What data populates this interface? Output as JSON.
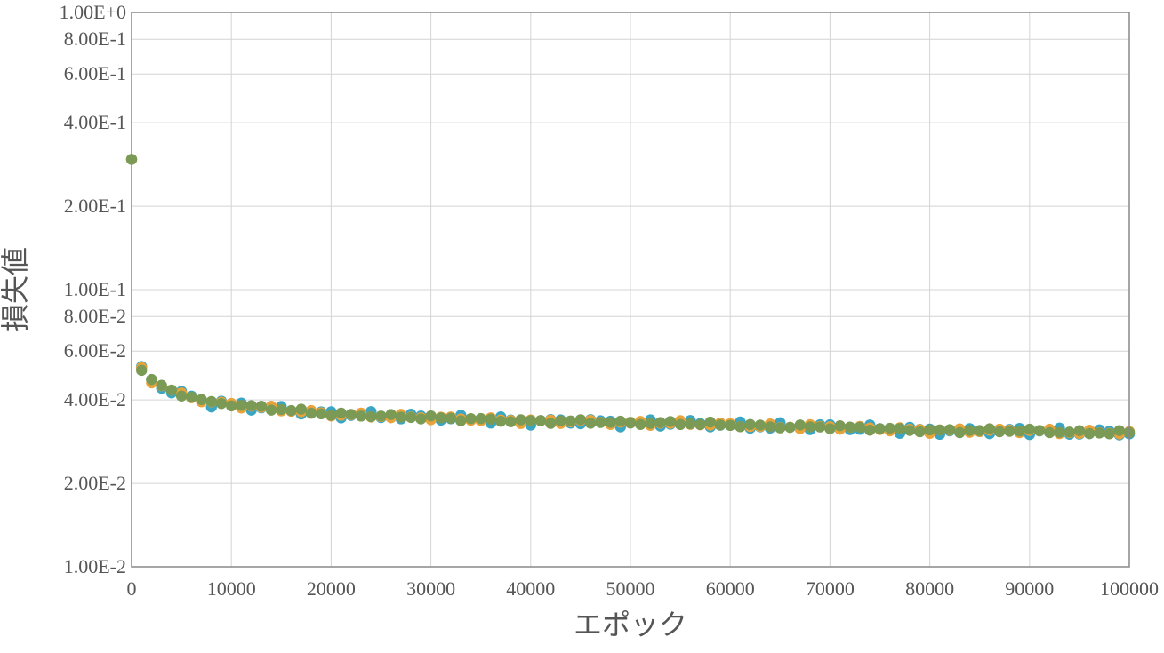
{
  "chart_data": {
    "type": "scatter",
    "title": "",
    "xlabel": "エポック",
    "ylabel": "損失値",
    "xlim": [
      0,
      100000
    ],
    "ylim": [
      0.01,
      1.0
    ],
    "yscale": "log",
    "grid": true,
    "x_ticks": [
      {
        "value": 0,
        "label": "0"
      },
      {
        "value": 10000,
        "label": "10000"
      },
      {
        "value": 20000,
        "label": "20000"
      },
      {
        "value": 30000,
        "label": "30000"
      },
      {
        "value": 40000,
        "label": "40000"
      },
      {
        "value": 50000,
        "label": "50000"
      },
      {
        "value": 60000,
        "label": "60000"
      },
      {
        "value": 70000,
        "label": "70000"
      },
      {
        "value": 80000,
        "label": "80000"
      },
      {
        "value": 90000,
        "label": "90000"
      },
      {
        "value": 100000,
        "label": "100000"
      }
    ],
    "y_ticks": [
      {
        "value": 1.0,
        "label": "1.00E+0"
      },
      {
        "value": 0.8,
        "label": "8.00E-1"
      },
      {
        "value": 0.6,
        "label": "6.00E-1"
      },
      {
        "value": 0.4,
        "label": "4.00E-1"
      },
      {
        "value": 0.2,
        "label": "2.00E-1"
      },
      {
        "value": 0.1,
        "label": "1.00E-1"
      },
      {
        "value": 0.08,
        "label": "8.00E-2"
      },
      {
        "value": 0.06,
        "label": "6.00E-2"
      },
      {
        "value": 0.04,
        "label": "4.00E-2"
      },
      {
        "value": 0.02,
        "label": "2.00E-2"
      },
      {
        "value": 0.01,
        "label": "1.00E-2"
      }
    ],
    "series": [
      {
        "color": "#3aa6c4",
        "jitter": 0.035,
        "phase": 0.3
      },
      {
        "color": "#e8a33a",
        "jitter": 0.022,
        "phase": 1.9
      },
      {
        "color": "#7a9a55",
        "jitter": 0.018,
        "phase": 3.7
      }
    ],
    "base_curve": {
      "x": [
        0,
        1000,
        2000,
        3000,
        4000,
        5000,
        6000,
        7000,
        8000,
        9000,
        10000,
        15000,
        20000,
        25000,
        30000,
        35000,
        40000,
        45000,
        50000,
        55000,
        60000,
        65000,
        70000,
        75000,
        80000,
        85000,
        90000,
        95000,
        100000
      ],
      "y": [
        0.295,
        0.052,
        0.047,
        0.045,
        0.043,
        0.042,
        0.041,
        0.04,
        0.039,
        0.039,
        0.0385,
        0.037,
        0.0355,
        0.035,
        0.0345,
        0.034,
        0.0335,
        0.0335,
        0.033,
        0.033,
        0.0325,
        0.032,
        0.032,
        0.0315,
        0.031,
        0.031,
        0.031,
        0.0305,
        0.0305
      ]
    },
    "x_step": 1000
  }
}
